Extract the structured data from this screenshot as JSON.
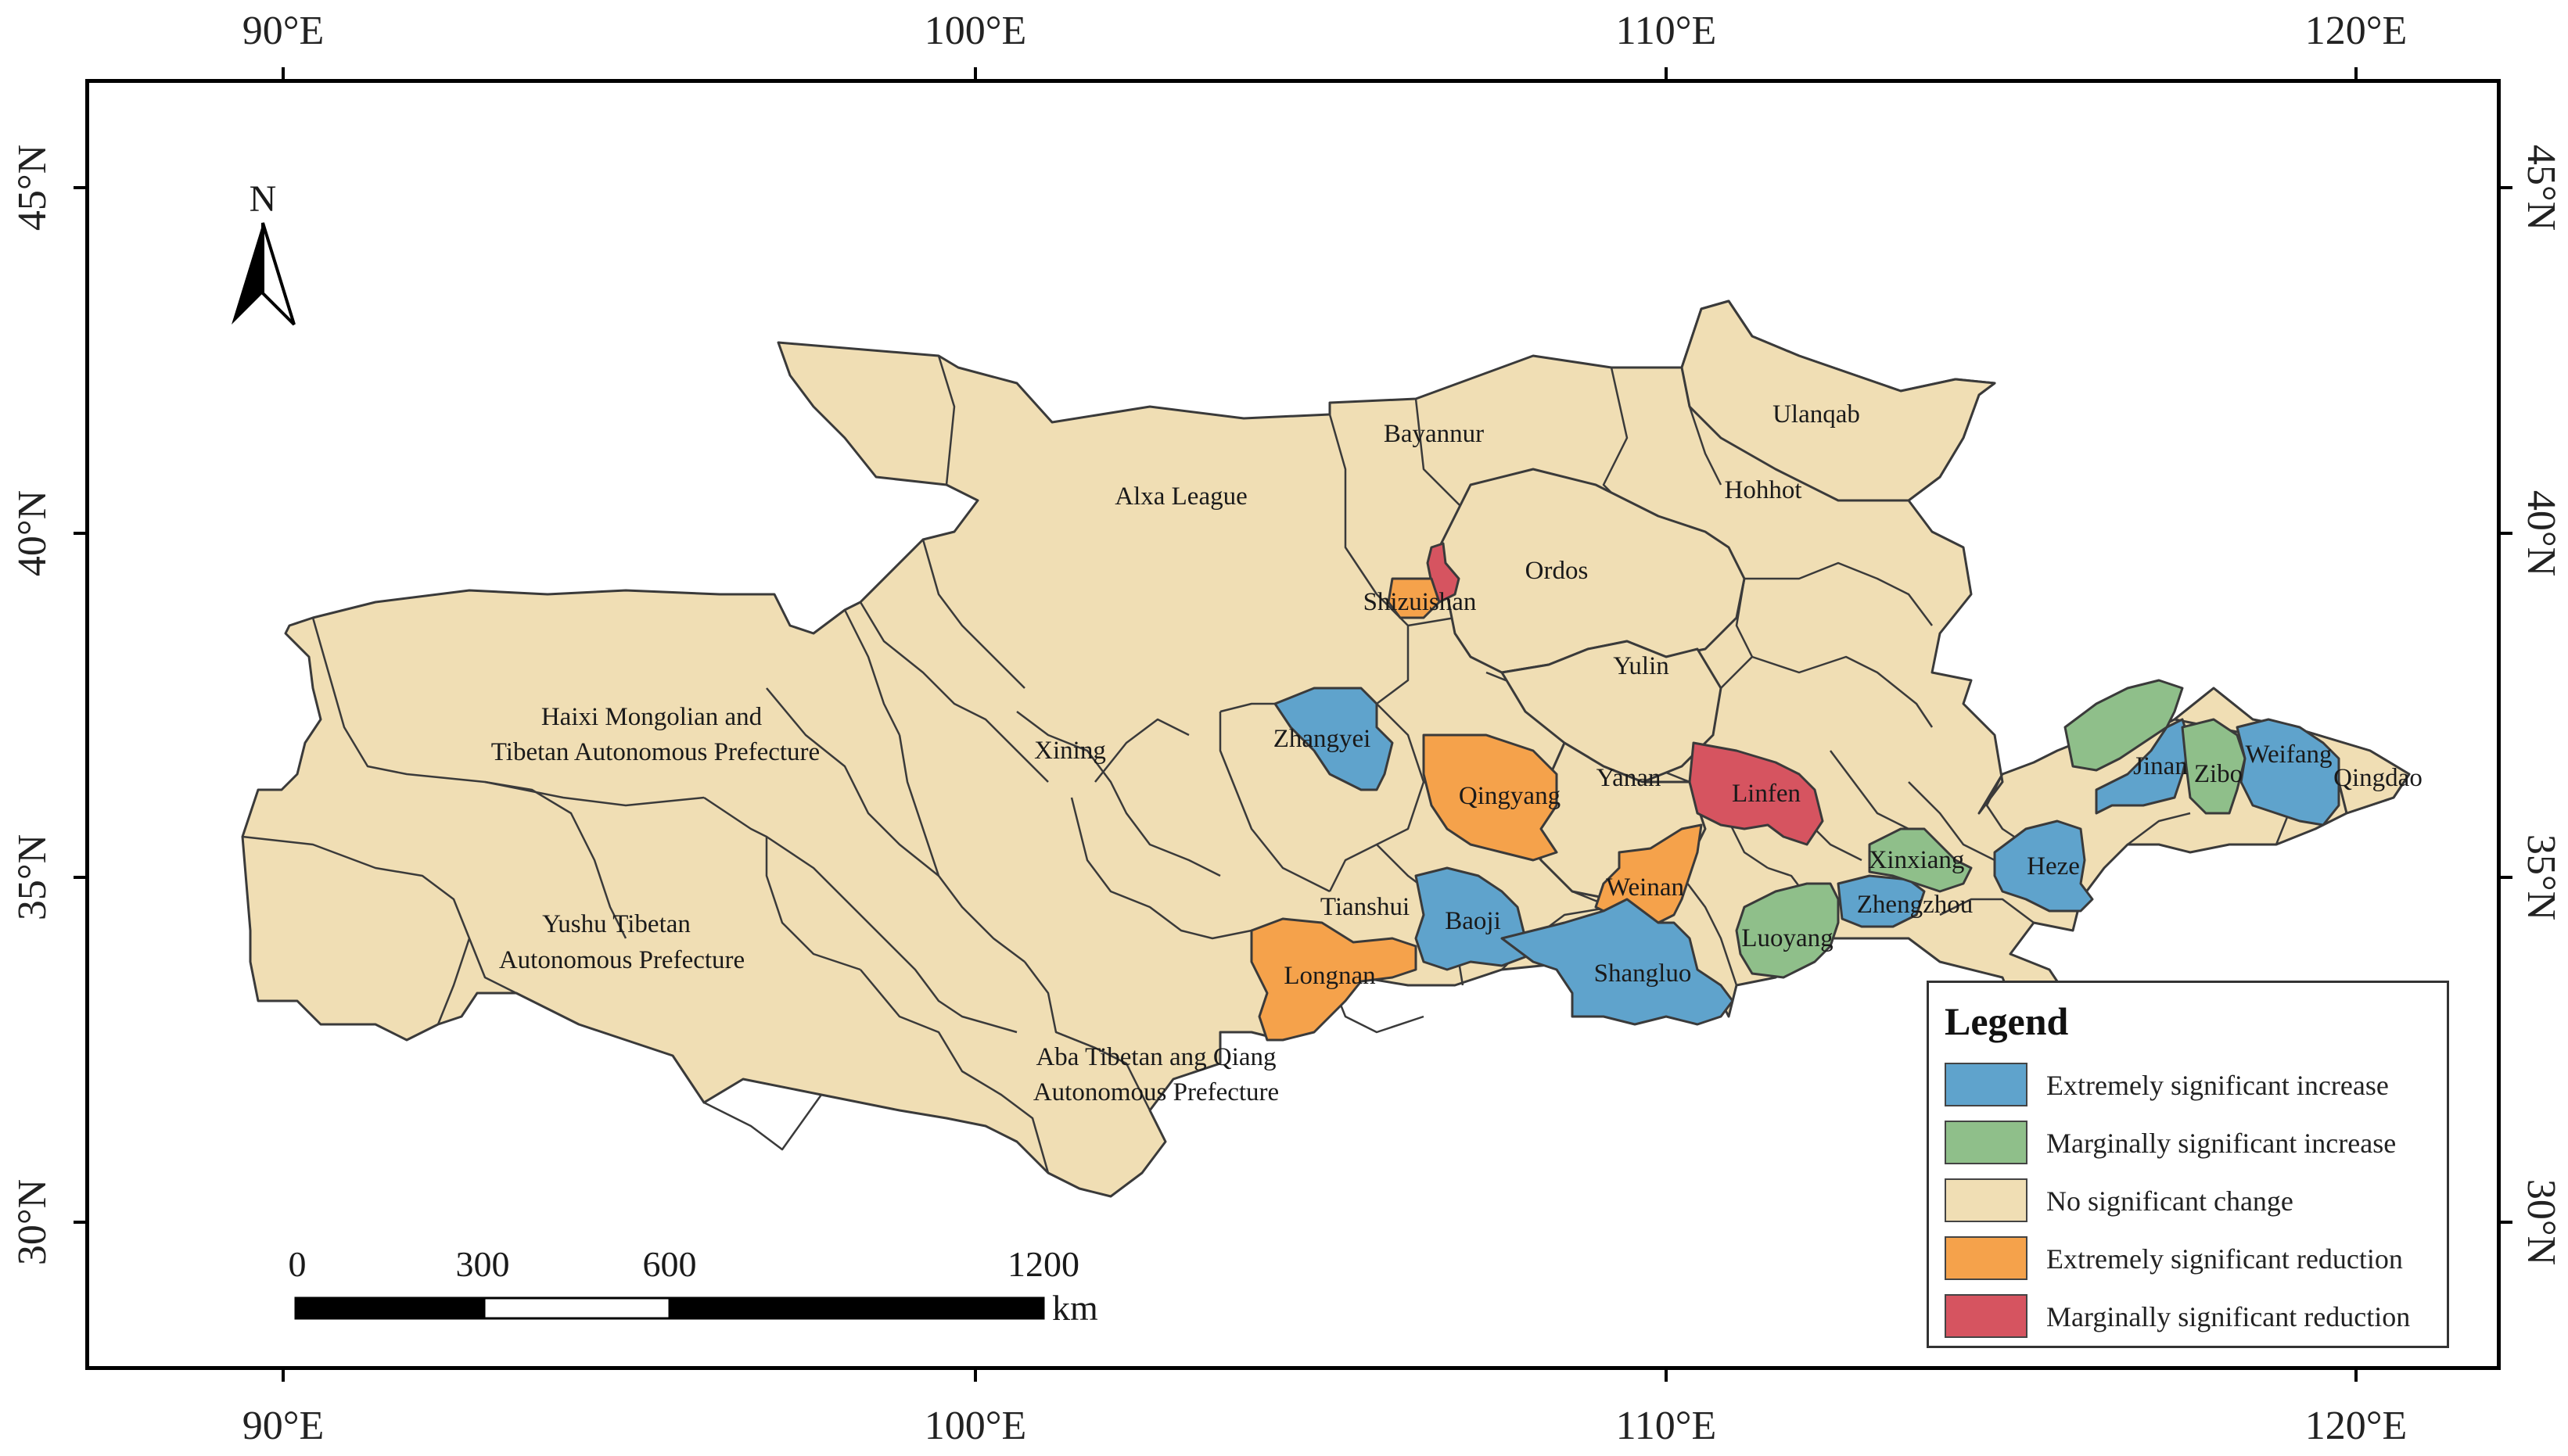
{
  "axes": {
    "lon_labels": [
      "90°E",
      "100°E",
      "110°E",
      "120°E"
    ],
    "lat_labels": [
      "45°N",
      "40°N",
      "35°N",
      "30°N"
    ]
  },
  "north_arrow": {
    "label": "N"
  },
  "scale_bar": {
    "ticks": [
      "0",
      "300",
      "600",
      "1200"
    ],
    "unit": "km"
  },
  "region_labels": {
    "alxa": "Alxa League",
    "bayannur": "Bayannur",
    "ulanqab": "Ulanqab",
    "hohhot": "Hohhot",
    "ordos": "Ordos",
    "shizuishan": "Shizuishan",
    "yulin": "Yulin",
    "haixi_1": "Haixi Mongolian and",
    "haixi_2": "Tibetan Autonomous Prefecture",
    "xining": "Xining",
    "zhangyei": "Zhangyei",
    "qingyang": "Qingyang",
    "yanan": "Yanan",
    "linfen": "Linfen",
    "jinan": "Jinan",
    "zibo": "Zibo",
    "weifang": "Weifang",
    "qingdao": "Qingdao",
    "xinxiang": "Xinxiang",
    "heze": "Heze",
    "zhengzhou": "Zhengzhou",
    "weinan": "Weinan",
    "tianshui": "Tianshui",
    "baoji": "Baoji",
    "luoyang": "Luoyang",
    "shangluo": "Shangluo",
    "longnan": "Longnan",
    "yushu_1": "Yushu Tibetan",
    "yushu_2": "Autonomous Prefecture",
    "aba_1": "Aba Tibetan ang Qiang",
    "aba_2": "Autonomous Prefecture"
  },
  "legend": {
    "title": "Legend",
    "items": [
      {
        "label": "Extremely significant increase",
        "color": "#5fa3cc"
      },
      {
        "label": "Marginally significant increase",
        "color": "#8fbf8a"
      },
      {
        "label": "No significant change",
        "color": "#f0deb4"
      },
      {
        "label": "Extremely significant reduction",
        "color": "#f5a24b"
      },
      {
        "label": "Marginally significant reduction",
        "color": "#d65460"
      }
    ]
  },
  "colors": {
    "increase_extreme": "#5fa3cc",
    "increase_marginal": "#8fbf8a",
    "no_change": "#f0deb4",
    "reduction_extreme": "#f5a24b",
    "reduction_marginal": "#d65460"
  }
}
